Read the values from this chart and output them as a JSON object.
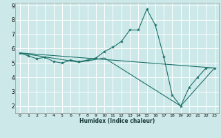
{
  "xlabel": "Humidex (Indice chaleur)",
  "xlim": [
    -0.5,
    23.5
  ],
  "ylim": [
    1.5,
    9.2
  ],
  "xticks": [
    0,
    1,
    2,
    3,
    4,
    5,
    6,
    7,
    8,
    9,
    10,
    11,
    12,
    13,
    14,
    15,
    16,
    17,
    18,
    19,
    20,
    21,
    22,
    23
  ],
  "yticks": [
    2,
    3,
    4,
    5,
    6,
    7,
    8,
    9
  ],
  "bg_color": "#cce8e8",
  "grid_color": "#ffffff",
  "line_color": "#1a7068",
  "series1": [
    [
      0,
      5.7
    ],
    [
      1,
      5.5
    ],
    [
      2,
      5.3
    ],
    [
      3,
      5.4
    ],
    [
      4,
      5.1
    ],
    [
      5,
      5.0
    ],
    [
      6,
      5.2
    ],
    [
      7,
      5.1
    ],
    [
      8,
      5.2
    ],
    [
      9,
      5.35
    ],
    [
      10,
      5.8
    ],
    [
      11,
      6.1
    ],
    [
      12,
      6.5
    ],
    [
      13,
      7.3
    ],
    [
      14,
      7.3
    ],
    [
      15,
      8.75
    ],
    [
      16,
      7.65
    ],
    [
      17,
      5.45
    ],
    [
      18,
      2.75
    ],
    [
      19,
      2.0
    ],
    [
      20,
      3.3
    ],
    [
      21,
      4.0
    ],
    [
      22,
      4.65
    ],
    [
      23,
      4.65
    ]
  ],
  "series2": [
    [
      0,
      5.7
    ],
    [
      7,
      5.05
    ],
    [
      10,
      5.35
    ],
    [
      19,
      2.0
    ],
    [
      23,
      4.65
    ]
  ],
  "series3": [
    [
      0,
      5.7
    ],
    [
      23,
      4.65
    ]
  ]
}
